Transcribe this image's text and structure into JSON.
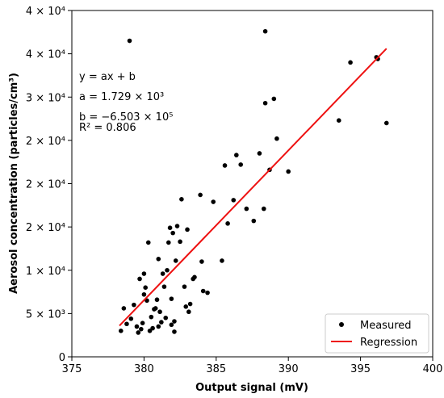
{
  "chart_data": {
    "type": "scatter",
    "xlabel": "Output signal (mV)",
    "ylabel": "Aerosol concentration (particles/cm³)",
    "xlim": [
      375,
      400
    ],
    "ylim": [
      0,
      40000
    ],
    "x_ticks": [
      375,
      380,
      385,
      390,
      395,
      400
    ],
    "y_ticks": [
      {
        "value": 0,
        "label": "0"
      },
      {
        "value": 5000,
        "label": "5 × 10³"
      },
      {
        "value": 10000,
        "label": "1 × 10⁴"
      },
      {
        "value": 15000,
        "label": "2 × 10⁴"
      },
      {
        "value": 20000,
        "label": "2 × 10⁴"
      },
      {
        "value": 25000,
        "label": "2 × 10⁴"
      },
      {
        "value": 30000,
        "label": "3 × 10⁴"
      },
      {
        "value": 35000,
        "label": "4 × 10⁴"
      },
      {
        "value": 40000,
        "label": "4 × 10⁴"
      }
    ],
    "annotations": [
      "y = ax + b",
      "a = 1.729 × 10³",
      "b = −6.503 × 10⁵",
      "R² = 0.806"
    ],
    "legend_position": "bottom-right",
    "series": [
      {
        "name": "Measured",
        "kind": "scatter",
        "color": "#000000",
        "points": [
          [
            378.4,
            3000
          ],
          [
            378.6,
            5600
          ],
          [
            378.8,
            3800
          ],
          [
            379.0,
            36500
          ],
          [
            379.1,
            4400
          ],
          [
            379.3,
            6000
          ],
          [
            379.5,
            3500
          ],
          [
            379.6,
            2800
          ],
          [
            379.7,
            9000
          ],
          [
            379.8,
            3200
          ],
          [
            379.9,
            3900
          ],
          [
            380.0,
            7200
          ],
          [
            380.0,
            9600
          ],
          [
            380.1,
            8000
          ],
          [
            380.2,
            6500
          ],
          [
            380.3,
            13200
          ],
          [
            380.4,
            3000
          ],
          [
            380.5,
            4600
          ],
          [
            380.6,
            3300
          ],
          [
            380.7,
            5500
          ],
          [
            380.8,
            5600
          ],
          [
            380.9,
            6600
          ],
          [
            381.0,
            3500
          ],
          [
            381.0,
            11300
          ],
          [
            381.1,
            5200
          ],
          [
            381.2,
            4000
          ],
          [
            381.3,
            9600
          ],
          [
            381.4,
            8100
          ],
          [
            381.5,
            4500
          ],
          [
            381.6,
            10000
          ],
          [
            381.7,
            13200
          ],
          [
            381.8,
            14900
          ],
          [
            381.9,
            6700
          ],
          [
            381.9,
            3700
          ],
          [
            382.0,
            14300
          ],
          [
            382.1,
            4100
          ],
          [
            382.1,
            2900
          ],
          [
            382.2,
            11100
          ],
          [
            382.3,
            15100
          ],
          [
            382.5,
            13300
          ],
          [
            382.6,
            18200
          ],
          [
            382.8,
            8100
          ],
          [
            382.9,
            5800
          ],
          [
            383.0,
            14700
          ],
          [
            383.1,
            5200
          ],
          [
            383.2,
            6100
          ],
          [
            383.4,
            9000
          ],
          [
            383.5,
            9200
          ],
          [
            383.9,
            18700
          ],
          [
            384.0,
            11000
          ],
          [
            384.1,
            7600
          ],
          [
            384.4,
            7400
          ],
          [
            384.8,
            17900
          ],
          [
            385.4,
            11100
          ],
          [
            385.6,
            22100
          ],
          [
            385.8,
            15400
          ],
          [
            386.2,
            18100
          ],
          [
            386.4,
            23300
          ],
          [
            386.7,
            22200
          ],
          [
            387.1,
            17100
          ],
          [
            387.6,
            15700
          ],
          [
            388.0,
            23500
          ],
          [
            388.3,
            17100
          ],
          [
            388.4,
            29300
          ],
          [
            388.4,
            37600
          ],
          [
            388.7,
            21600
          ],
          [
            389.0,
            29800
          ],
          [
            389.2,
            25200
          ],
          [
            390.0,
            21400
          ],
          [
            393.5,
            27300
          ],
          [
            394.3,
            34000
          ],
          [
            396.1,
            34600
          ],
          [
            396.2,
            34400
          ],
          [
            396.8,
            27000
          ]
        ]
      },
      {
        "name": "Regression",
        "kind": "line",
        "color": "#ee1111",
        "points": [
          [
            378.3,
            3600
          ],
          [
            396.8,
            35600
          ]
        ]
      }
    ]
  }
}
